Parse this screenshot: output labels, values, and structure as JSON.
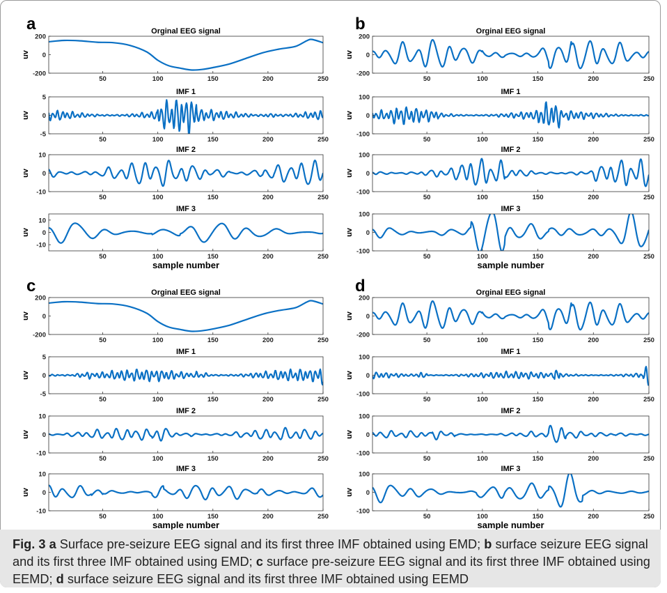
{
  "caption": {
    "fig_label": "Fig. 3",
    "parts": [
      {
        "letter": "a",
        "text": " Surface pre-seizure EEG signal and its first three IMF obtained using EMD; "
      },
      {
        "letter": "b",
        "text": " surface seizure EEG signal and its first three IMF obtained using EMD; "
      },
      {
        "letter": "c",
        "text": " surface pre-seizure EEG signal and its first three IMF obtained using EEMD; "
      },
      {
        "letter": "d",
        "text": " surface seizure EEG signal and its first three IMF obtained using EEMD"
      }
    ]
  },
  "colors": {
    "line": "#0a70c4",
    "axis": "#333333",
    "caption_bg": "#e6e6e6"
  },
  "chart_data": [
    {
      "panel": "a",
      "type": "line",
      "subplots": [
        {
          "title": "Orginal EEG signal",
          "ylabel": "uv",
          "xlim": [
            1,
            250
          ],
          "ylim": [
            -200,
            200
          ],
          "yticks": [
            -200,
            0,
            200
          ],
          "xticks": [
            50,
            100,
            150,
            200,
            250
          ],
          "xlabel": "",
          "x": [
            1,
            15,
            30,
            45,
            60,
            75,
            90,
            100,
            110,
            120,
            130,
            140,
            150,
            165,
            180,
            195,
            210,
            225,
            235,
            240,
            250
          ],
          "y": [
            140,
            155,
            150,
            135,
            130,
            100,
            30,
            -60,
            -120,
            -145,
            -165,
            -160,
            -140,
            -100,
            -40,
            20,
            60,
            90,
            150,
            165,
            130
          ]
        },
        {
          "title": "IMF 1",
          "ylabel": "uv",
          "xlim": [
            1,
            250
          ],
          "ylim": [
            -5,
            5
          ],
          "yticks": [
            -5,
            0,
            5
          ],
          "xticks": [
            50,
            100,
            150,
            200,
            250
          ],
          "xlabel": "",
          "gen": {
            "base": 1.6,
            "period": 4.5,
            "seed": 11,
            "burst": [
              [
                100,
                135,
                2.8
              ],
              [
                195,
                210,
                2.6
              ]
            ]
          }
        },
        {
          "title": "IMF 2",
          "ylabel": "uv",
          "xlim": [
            1,
            250
          ],
          "ylim": [
            -10,
            10
          ],
          "yticks": [
            -10,
            0,
            10
          ],
          "xticks": [
            50,
            100,
            150,
            200,
            250
          ],
          "xlabel": "",
          "gen": {
            "base": 6.5,
            "period": 11,
            "seed": 23,
            "burst": [
              [
                150,
                165,
                1.6
              ],
              [
                195,
                205,
                1.6
              ]
            ]
          }
        },
        {
          "title": "IMF 3",
          "ylabel": "uv",
          "xlim": [
            1,
            250
          ],
          "ylim": [
            -15,
            15
          ],
          "yticks": [
            -10,
            0,
            10
          ],
          "xticks": [
            50,
            100,
            150,
            200,
            250
          ],
          "xlabel": "sample number",
          "gen": {
            "base": 8,
            "period": 26,
            "seed": 37,
            "burst": [
              [
                95,
                120,
                2.1
              ]
            ]
          }
        }
      ]
    },
    {
      "panel": "b",
      "type": "line",
      "subplots": [
        {
          "title": "Orginal EEG signal",
          "ylabel": "uv",
          "xlim": [
            1,
            250
          ],
          "ylim": [
            -200,
            200
          ],
          "yticks": [
            -200,
            0,
            200
          ],
          "xticks": [
            50,
            100,
            150,
            200,
            250
          ],
          "xlabel": "",
          "gen": {
            "base": 150,
            "period": 14,
            "seed": 41,
            "burst": [
              [
                100,
                120,
                1.5
              ],
              [
                160,
                180,
                1.5
              ]
            ]
          }
        },
        {
          "title": "IMF 1",
          "ylabel": "uv",
          "xlim": [
            1,
            250
          ],
          "ylim": [
            -100,
            100
          ],
          "yticks": [
            -100,
            0,
            100
          ],
          "xticks": [
            50,
            100,
            150,
            200,
            250
          ],
          "xlabel": "",
          "gen": {
            "base": 25,
            "period": 4.5,
            "seed": 53,
            "burst": [
              [
                20,
                60,
                1.8
              ],
              [
                150,
                170,
                2.5
              ]
            ]
          }
        },
        {
          "title": "IMF 2",
          "ylabel": "uv",
          "xlim": [
            1,
            250
          ],
          "ylim": [
            -100,
            100
          ],
          "yticks": [
            -100,
            0,
            100
          ],
          "xticks": [
            50,
            100,
            150,
            200,
            250
          ],
          "xlabel": "",
          "gen": {
            "base": 35,
            "period": 9,
            "seed": 61,
            "burst": [
              [
                80,
                120,
                2.0
              ],
              [
                200,
                250,
                2.0
              ]
            ]
          }
        },
        {
          "title": "IMF 3",
          "ylabel": "uv",
          "xlim": [
            1,
            250
          ],
          "ylim": [
            -100,
            100
          ],
          "yticks": [
            -100,
            0,
            100
          ],
          "xticks": [
            50,
            100,
            150,
            200,
            250
          ],
          "xlabel": "sample number",
          "gen": {
            "base": 55,
            "period": 18,
            "seed": 71,
            "burst": [
              [
                90,
                120,
                2.2
              ],
              [
                160,
                250,
                2.4
              ]
            ]
          }
        }
      ]
    },
    {
      "panel": "c",
      "type": "line",
      "subplots": [
        {
          "title": "Orginal EEG signal",
          "ylabel": "uv",
          "xlim": [
            1,
            250
          ],
          "ylim": [
            -200,
            200
          ],
          "yticks": [
            -200,
            0,
            200
          ],
          "xticks": [
            50,
            100,
            150,
            200,
            250
          ],
          "xlabel": "",
          "x": [
            1,
            15,
            30,
            45,
            60,
            75,
            90,
            100,
            110,
            120,
            130,
            140,
            150,
            165,
            180,
            195,
            210,
            225,
            235,
            240,
            250
          ],
          "y": [
            140,
            155,
            150,
            135,
            130,
            100,
            30,
            -60,
            -120,
            -145,
            -165,
            -160,
            -140,
            -100,
            -40,
            20,
            60,
            90,
            150,
            165,
            130
          ]
        },
        {
          "title": "IMF 1",
          "ylabel": "uv",
          "xlim": [
            1,
            250
          ],
          "ylim": [
            -5,
            5
          ],
          "yticks": [
            -5,
            0,
            5
          ],
          "xticks": [
            50,
            100,
            150,
            200,
            250
          ],
          "xlabel": "",
          "gen": {
            "base": 1.5,
            "period": 4.5,
            "seed": 83,
            "burst": [
              [
                25,
                40,
                1.8
              ],
              [
                135,
                145,
                1.8
              ],
              [
                245,
                250,
                1.8
              ]
            ]
          }
        },
        {
          "title": "IMF 2",
          "ylabel": "uv",
          "xlim": [
            1,
            250
          ],
          "ylim": [
            -10,
            10
          ],
          "yticks": [
            -10,
            0,
            10
          ],
          "xticks": [
            50,
            100,
            150,
            200,
            250
          ],
          "xlabel": "",
          "gen": {
            "base": 3,
            "period": 9,
            "seed": 89,
            "burst": [
              [
                95,
                110,
                1.9
              ],
              [
                130,
                140,
                1.6
              ]
            ]
          }
        },
        {
          "title": "IMF 3",
          "ylabel": "uv",
          "xlim": [
            1,
            250
          ],
          "ylim": [
            -10,
            10
          ],
          "yticks": [
            -10,
            0,
            10
          ],
          "xticks": [
            50,
            100,
            150,
            200,
            250
          ],
          "xlabel": "sample number",
          "gen": {
            "base": 4,
            "period": 15,
            "seed": 97,
            "burst": [
              [
                40,
                50,
                1.9
              ],
              [
                95,
                105,
                1.9
              ],
              [
                190,
                250,
                1.7
              ]
            ]
          }
        }
      ]
    },
    {
      "panel": "d",
      "type": "line",
      "subplots": [
        {
          "title": "Orginal EEG signal",
          "ylabel": "uv",
          "xlim": [
            1,
            250
          ],
          "ylim": [
            -200,
            200
          ],
          "yticks": [
            -200,
            0,
            200
          ],
          "xticks": [
            50,
            100,
            150,
            200,
            250
          ],
          "xlabel": "",
          "gen": {
            "base": 150,
            "period": 14,
            "seed": 41,
            "burst": [
              [
                100,
                120,
                1.5
              ],
              [
                160,
                180,
                1.5
              ]
            ]
          }
        },
        {
          "title": "IMF 1",
          "ylabel": "uv",
          "xlim": [
            1,
            250
          ],
          "ylim": [
            -100,
            100
          ],
          "yticks": [
            -100,
            0,
            100
          ],
          "xticks": [
            50,
            100,
            150,
            200,
            250
          ],
          "xlabel": "",
          "gen": {
            "base": 18,
            "period": 4.5,
            "seed": 103,
            "burst": [
              [
                40,
                50,
                4.0
              ],
              [
                165,
                170,
                4.0
              ],
              [
                245,
                250,
                3.5
              ]
            ]
          }
        },
        {
          "title": "IMF 2",
          "ylabel": "uv",
          "xlim": [
            1,
            250
          ],
          "ylim": [
            -100,
            100
          ],
          "yticks": [
            -100,
            0,
            100
          ],
          "xticks": [
            50,
            100,
            150,
            200,
            250
          ],
          "xlabel": "",
          "gen": {
            "base": 18,
            "period": 9,
            "seed": 107,
            "burst": [
              [
                55,
                75,
                2.2
              ],
              [
                160,
                175,
                2.5
              ],
              [
                220,
                250,
                2.2
              ]
            ]
          }
        },
        {
          "title": "IMF 3",
          "ylabel": "uv",
          "xlim": [
            1,
            250
          ],
          "ylim": [
            -100,
            100
          ],
          "yticks": [
            -100,
            0,
            100
          ],
          "xticks": [
            50,
            100,
            150,
            200,
            250
          ],
          "xlabel": "sample number",
          "gen": {
            "base": 45,
            "period": 18,
            "seed": 113,
            "burst": [
              [
                95,
                120,
                2.4
              ],
              [
                160,
                190,
                2.6
              ]
            ]
          }
        }
      ]
    }
  ]
}
